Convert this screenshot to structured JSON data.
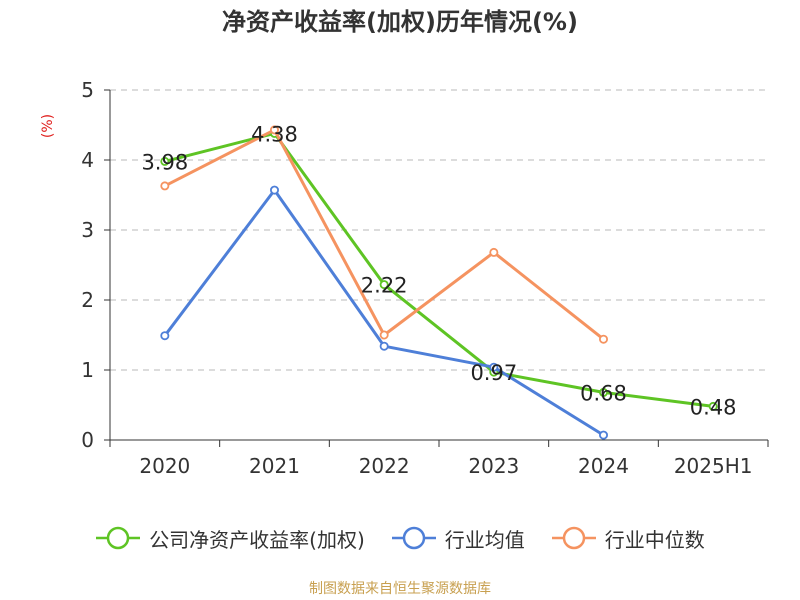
{
  "chart_data": {
    "type": "line",
    "title": "净资产收益率(加权)历年情况(%)",
    "ylabel": "(%)",
    "xlabel": "",
    "categories": [
      "2020",
      "2021",
      "2022",
      "2023",
      "2024",
      "2025H1"
    ],
    "ylim": [
      0,
      5
    ],
    "yticks": [
      0,
      1,
      2,
      3,
      4,
      5
    ],
    "grid": true,
    "legend_position": "bottom",
    "series": [
      {
        "name": "公司净资产收益率(加权)",
        "color": "#5ec424",
        "values": [
          3.98,
          4.38,
          2.22,
          0.97,
          0.68,
          0.48
        ],
        "labels": [
          "3.98",
          "4.38",
          "2.22",
          "0.97",
          "0.68",
          "0.48"
        ]
      },
      {
        "name": "行业均值",
        "color": "#4e7fd8",
        "values": [
          1.49,
          3.57,
          1.34,
          1.04,
          0.07,
          null
        ]
      },
      {
        "name": "行业中位数",
        "color": "#f59360",
        "values": [
          3.63,
          4.43,
          1.5,
          2.68,
          1.44,
          null
        ]
      }
    ]
  },
  "source": "制图数据来自恒生聚源数据库",
  "colors": {
    "axis": "#333333",
    "grid": "#c8c8c8",
    "ylabel": "#e0201e"
  }
}
